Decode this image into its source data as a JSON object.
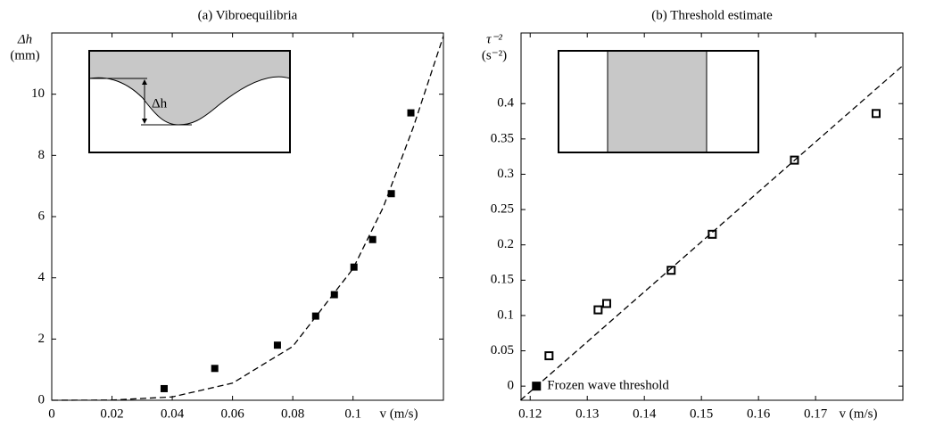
{
  "chart_data": [
    {
      "type": "scatter",
      "title": "(a) Vibroequilibria",
      "xlabel": "v (m/s)",
      "ylabel": "Δh",
      "ylabel_unit": "(mm)",
      "inset_label": "Δh",
      "xlim": [
        0,
        0.13
      ],
      "ylim": [
        0,
        12
      ],
      "xticks": [
        0,
        0.02,
        0.04,
        0.06,
        0.08,
        0.1
      ],
      "yticks": [
        0,
        2,
        4,
        6,
        8,
        10
      ],
      "points": {
        "color": "#000000",
        "marker": "filled",
        "x": [
          0.0373,
          0.0541,
          0.0749,
          0.0876,
          0.0938,
          0.1003,
          0.1065,
          0.1127,
          0.1192
        ],
        "y": [
          0.38,
          1.04,
          1.8,
          2.75,
          3.45,
          4.35,
          5.25,
          6.75,
          9.39
        ]
      },
      "fit": {
        "color": "#000000",
        "x": [
          0,
          0.02,
          0.04,
          0.06,
          0.08,
          0.1,
          0.11,
          0.12,
          0.13
        ],
        "y": [
          0,
          0.007,
          0.11,
          0.56,
          1.76,
          4.3,
          6.3,
          8.92,
          11.9
        ]
      }
    },
    {
      "type": "scatter",
      "title": "(b) Threshold estimate",
      "xlabel": "v (m/s)",
      "ylabel": "τ⁻²",
      "ylabel_unit": "(s⁻²)",
      "xlim": [
        0.1184,
        0.1853
      ],
      "ylim": [
        -0.02,
        0.5
      ],
      "xticks": [
        0.12,
        0.13,
        0.14,
        0.15,
        0.16,
        0.17
      ],
      "yticks": [
        0,
        0.05,
        0.1,
        0.15,
        0.2,
        0.25,
        0.3,
        0.35,
        0.4
      ],
      "points": {
        "color": "#000000",
        "marker": "open",
        "x": [
          0.1233,
          0.1319,
          0.1334,
          0.1447,
          0.1519,
          0.1663,
          0.1806
        ],
        "y": [
          0.043,
          0.108,
          0.117,
          0.164,
          0.215,
          0.32,
          0.386
        ]
      },
      "threshold": {
        "label": "Frozen wave threshold",
        "x": 0.1211,
        "y": 0,
        "color": "#000000"
      },
      "fit": {
        "color": "#000000",
        "x": [
          0.1183,
          0.1853
        ],
        "y": [
          -0.02,
          0.454
        ]
      }
    }
  ]
}
